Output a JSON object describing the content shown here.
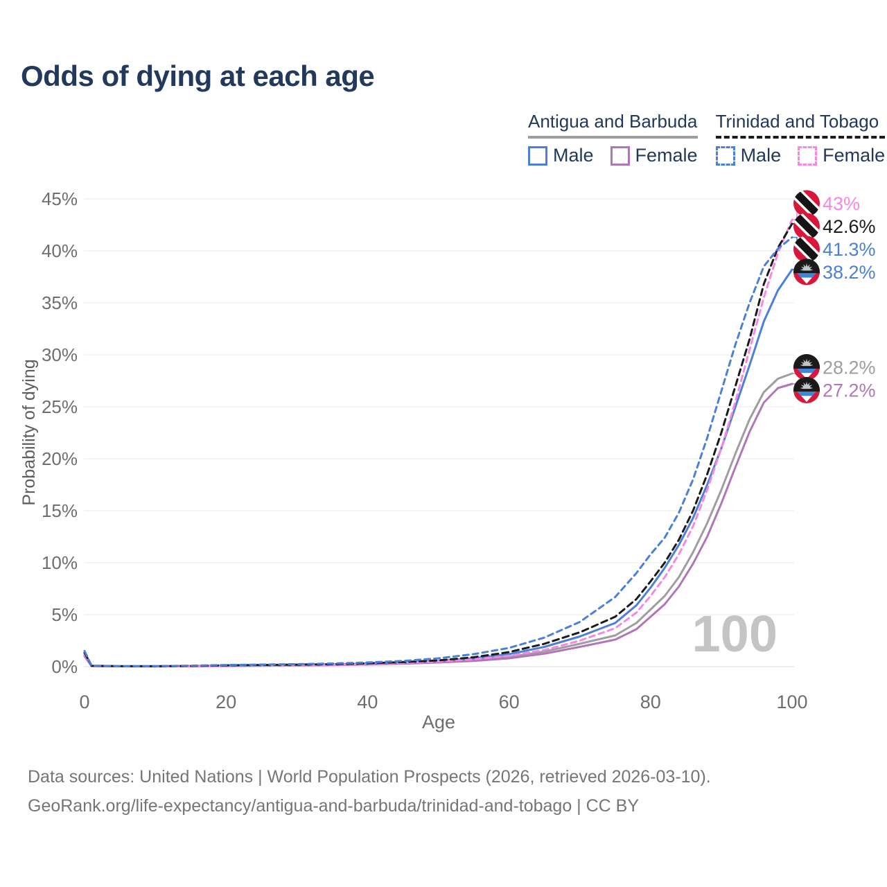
{
  "title": "Odds of dying at each age",
  "legend": {
    "groups": [
      {
        "label": "Antigua and Barbuda",
        "line": {
          "style": "solid",
          "color": "#9e9e9e"
        },
        "items": [
          {
            "label": "Male",
            "swatch": {
              "style": "solid",
              "color": "#4a80d8"
            }
          },
          {
            "label": "Female",
            "swatch": {
              "style": "solid",
              "color": "#b175ba"
            }
          }
        ]
      },
      {
        "label": "Trinidad and Tobago",
        "line": {
          "style": "dashed",
          "color": "#1b1b1b"
        },
        "items": [
          {
            "label": "Male",
            "swatch": {
              "style": "dashed",
              "color": "#4a80d8"
            }
          },
          {
            "label": "Female",
            "swatch": {
              "style": "dashed",
              "color": "#f887e1"
            }
          }
        ]
      }
    ]
  },
  "chart_data": {
    "type": "line",
    "title": "Odds of dying at each age",
    "xlabel": "Age",
    "ylabel": "Probability of dying",
    "xlim": [
      0,
      100
    ],
    "ylim": [
      0,
      45
    ],
    "x_ticks": [
      0,
      20,
      40,
      60,
      80,
      100
    ],
    "y_ticks": [
      0,
      5,
      10,
      15,
      20,
      25,
      30,
      35,
      40,
      45
    ],
    "y_tick_suffix": "%",
    "grid": "horizontal",
    "legend_position": "top-right",
    "watermark": "100",
    "ages": [
      0,
      1,
      5,
      10,
      15,
      20,
      25,
      30,
      35,
      40,
      45,
      50,
      55,
      60,
      65,
      70,
      75,
      78,
      80,
      82,
      84,
      86,
      88,
      90,
      92,
      94,
      96,
      98,
      100
    ],
    "series": [
      {
        "id": "ab-combined",
        "name": "Antigua and Barbuda",
        "sex": "combined",
        "country": "Antigua and Barbuda",
        "flag": "ab",
        "color": "#9e9e9e",
        "dash": false,
        "end_label": "28.2%",
        "end_value": 28.2,
        "values": [
          1.1,
          0.06,
          0.03,
          0.03,
          0.05,
          0.08,
          0.1,
          0.13,
          0.17,
          0.23,
          0.32,
          0.45,
          0.65,
          0.95,
          1.45,
          2.2,
          3.0,
          4.2,
          5.5,
          6.8,
          8.6,
          11,
          13.8,
          17,
          20.5,
          23.8,
          26.4,
          27.7,
          28.2
        ]
      },
      {
        "id": "ab-female",
        "name": "Antigua and Barbuda — Female",
        "sex": "female",
        "country": "Antigua and Barbuda",
        "flag": "ab",
        "color": "#b175ba",
        "dash": false,
        "end_label": "27.2%",
        "end_value": 27.2,
        "values": [
          1.0,
          0.05,
          0.03,
          0.02,
          0.04,
          0.06,
          0.08,
          0.11,
          0.15,
          0.2,
          0.28,
          0.4,
          0.55,
          0.8,
          1.25,
          1.9,
          2.6,
          3.6,
          4.8,
          6.0,
          7.7,
          9.9,
          12.5,
          15.7,
          19.2,
          22.6,
          25.4,
          26.8,
          27.2
        ]
      },
      {
        "id": "ab-male",
        "name": "Antigua and Barbuda — Male",
        "sex": "male",
        "country": "Antigua and Barbuda",
        "flag": "ab",
        "color": "#4a80d8",
        "dash": false,
        "end_label": "38.2%",
        "end_value": 38.2,
        "values": [
          1.25,
          0.07,
          0.04,
          0.04,
          0.07,
          0.11,
          0.14,
          0.17,
          0.22,
          0.29,
          0.4,
          0.55,
          0.8,
          1.2,
          1.9,
          2.9,
          4.2,
          5.9,
          7.6,
          9.5,
          11.7,
          14.3,
          17.5,
          21,
          25,
          29,
          33.2,
          36.2,
          38.2
        ]
      },
      {
        "id": "tt-female",
        "name": "Trinidad and Tobago — Female",
        "sex": "female",
        "country": "Trinidad and Tobago",
        "flag": "tt",
        "color": "#f887e1",
        "dash": true,
        "end_label": "43%",
        "end_value": 43.0,
        "values": [
          1.2,
          0.07,
          0.03,
          0.03,
          0.05,
          0.08,
          0.1,
          0.13,
          0.18,
          0.24,
          0.35,
          0.5,
          0.7,
          1.05,
          1.6,
          2.5,
          3.7,
          5.2,
          6.8,
          8.6,
          10.8,
          13.5,
          17,
          21,
          25.5,
          30.5,
          35.5,
          39.8,
          43.0
        ]
      },
      {
        "id": "tt-combined",
        "name": "Trinidad and Tobago",
        "sex": "combined",
        "country": "Trinidad and Tobago",
        "flag": "tt",
        "color": "#1b1b1b",
        "dash": true,
        "end_label": "42.6%",
        "end_value": 42.6,
        "values": [
          1.35,
          0.08,
          0.04,
          0.04,
          0.07,
          0.12,
          0.16,
          0.19,
          0.24,
          0.32,
          0.44,
          0.6,
          0.9,
          1.4,
          2.2,
          3.3,
          4.8,
          6.5,
          8.2,
          10.0,
          12.2,
          15,
          18.5,
          22.5,
          27,
          31.5,
          36.8,
          40.3,
          42.6
        ]
      },
      {
        "id": "tt-male",
        "name": "Trinidad and Tobago — Male",
        "sex": "male",
        "country": "Trinidad and Tobago",
        "flag": "tt",
        "color": "#4a80d8",
        "dash": true,
        "end_label": "41.3%",
        "end_value": 41.3,
        "values": [
          1.5,
          0.09,
          0.05,
          0.05,
          0.09,
          0.16,
          0.2,
          0.24,
          0.3,
          0.4,
          0.55,
          0.8,
          1.2,
          1.8,
          2.8,
          4.3,
          6.7,
          9.0,
          10.8,
          12.4,
          14.8,
          18,
          22,
          26.5,
          31,
          35,
          38.5,
          40.2,
          41.3
        ]
      }
    ]
  },
  "footer": {
    "line1": "Data sources: United Nations | World Population Prospects (2026, retrieved 2026-03-10).",
    "line2": "GeoRank.org/life-expectancy/antigua-and-barbuda/trinidad-and-tobago | CC BY"
  }
}
